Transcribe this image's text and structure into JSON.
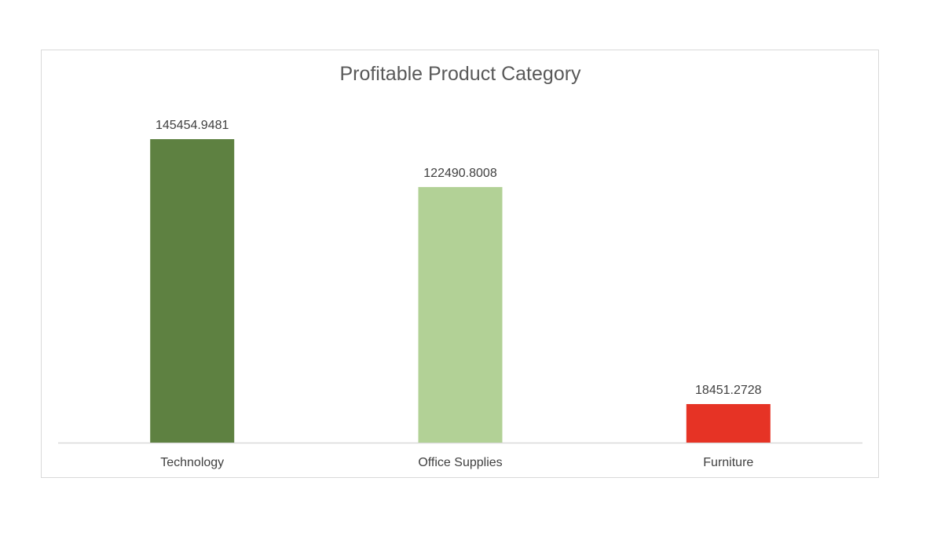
{
  "chart_data": {
    "type": "bar",
    "title": "Profitable Product Category",
    "xlabel": "",
    "ylabel": "",
    "categories": [
      "Technology",
      "Office Supplies",
      "Furniture"
    ],
    "values": [
      145454.9481,
      122490.8008,
      18451.2728
    ],
    "data_labels": [
      "145454.9481",
      "122490.8008",
      "18451.2728"
    ],
    "colors": [
      "#5e8141",
      "#b2d196",
      "#e63325"
    ],
    "ylim": [
      0,
      145454.9481
    ],
    "grid": false,
    "legend": "none"
  }
}
